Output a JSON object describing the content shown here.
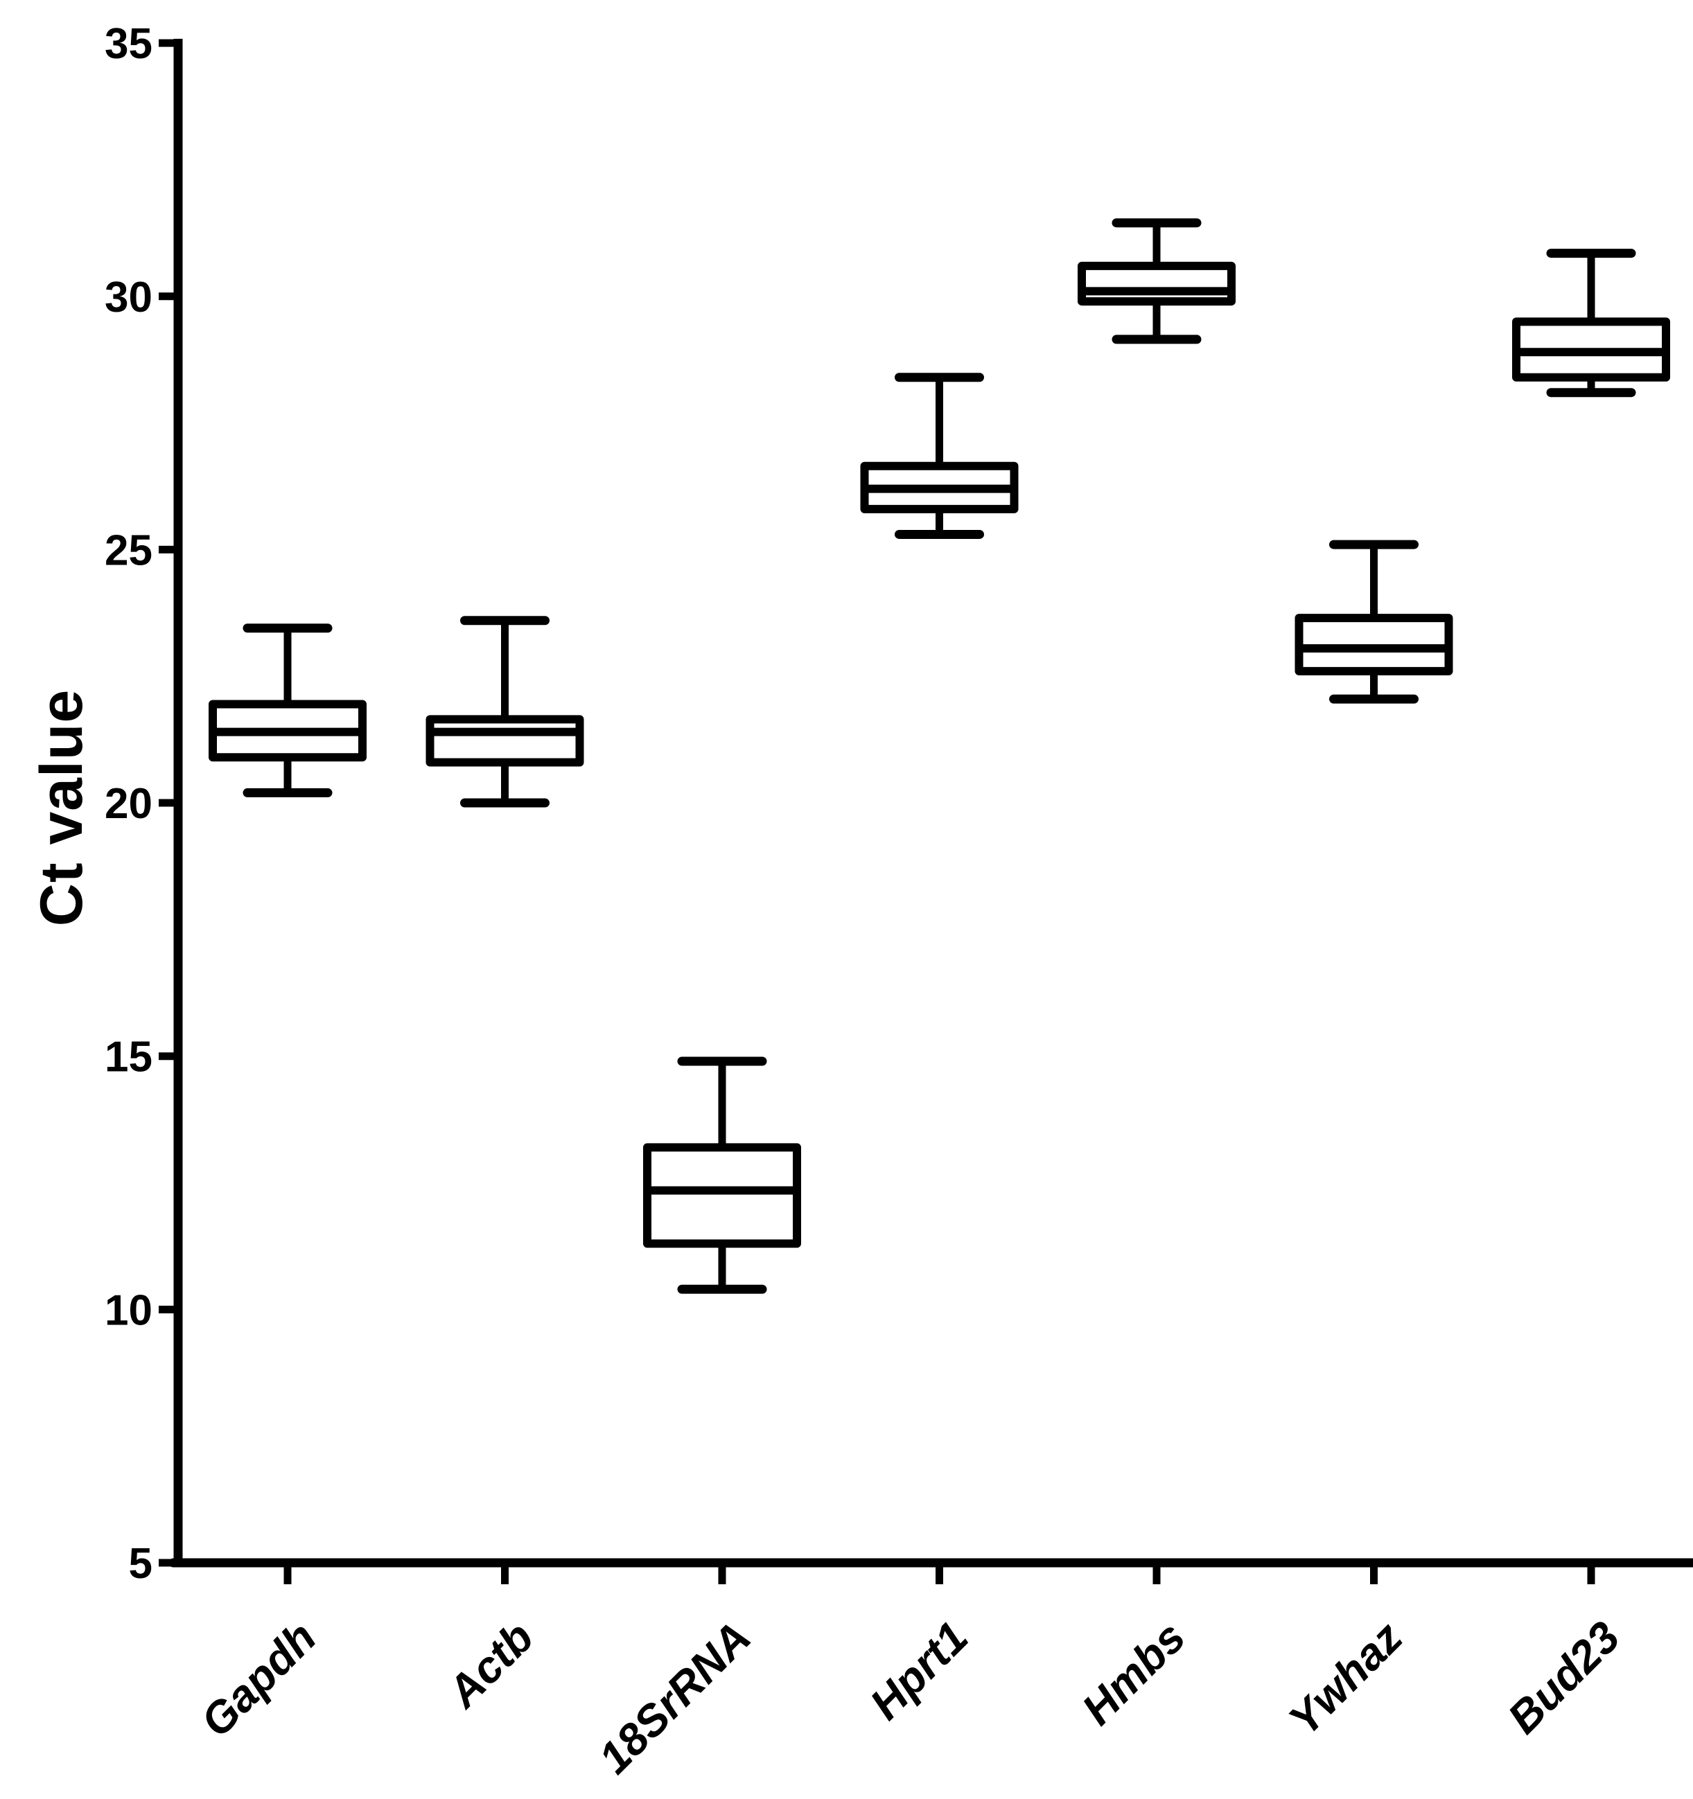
{
  "figure": {
    "kind": "box-and-whisker plot",
    "background_color": "#ffffff",
    "ink_color": "#000000"
  },
  "chart_data": {
    "type": "box",
    "title": "",
    "xlabel": "",
    "ylabel": "Ct value",
    "ylim": [
      5,
      35
    ],
    "yticks": [
      5,
      10,
      15,
      20,
      25,
      30,
      35
    ],
    "grid": false,
    "legend": null,
    "categories": [
      "Gapdh",
      "Actb",
      "18SrRNA",
      "Hprt1",
      "Hmbs",
      "Ywhaz",
      "Bud23"
    ],
    "series": [
      {
        "name": "Gapdh",
        "whisker_low": 20.2,
        "q1": 20.9,
        "median": 21.4,
        "q3": 21.95,
        "whisker_high": 23.45
      },
      {
        "name": "Actb",
        "whisker_low": 20.0,
        "q1": 20.8,
        "median": 21.4,
        "q3": 21.65,
        "whisker_high": 23.6
      },
      {
        "name": "18SrRNA",
        "whisker_low": 10.4,
        "q1": 11.3,
        "median": 12.35,
        "q3": 13.2,
        "whisker_high": 14.9
      },
      {
        "name": "Hprt1",
        "whisker_low": 25.3,
        "q1": 25.8,
        "median": 26.2,
        "q3": 26.65,
        "whisker_high": 28.4
      },
      {
        "name": "Hmbs",
        "whisker_low": 29.15,
        "q1": 29.9,
        "median": 30.1,
        "q3": 30.6,
        "whisker_high": 31.45
      },
      {
        "name": "Ywhaz",
        "whisker_low": 22.05,
        "q1": 22.6,
        "median": 23.05,
        "q3": 23.65,
        "whisker_high": 25.1
      },
      {
        "name": "Bud23",
        "whisker_low": 28.1,
        "q1": 28.4,
        "median": 28.9,
        "q3": 29.5,
        "whisker_high": 30.85
      }
    ]
  }
}
